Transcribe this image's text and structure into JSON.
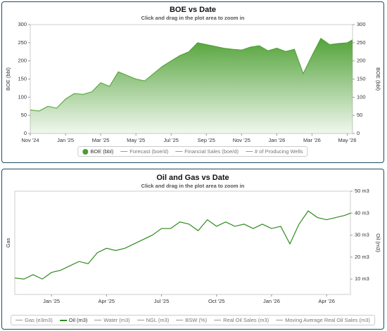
{
  "chart_data": [
    {
      "type": "area",
      "title": "BOE vs Date",
      "subtitle": "Click and drag in the plot area to zoom in",
      "y_label": "BOE (bbl)",
      "y2_label": "BOE (bbl)",
      "x": [
        0,
        0.5,
        1,
        1.5,
        2,
        2.5,
        3,
        3.5,
        4,
        4.5,
        5,
        5.5,
        6,
        6.5,
        7,
        7.5,
        8,
        8.5,
        9,
        9.5,
        10,
        10.5,
        11,
        11.5,
        12,
        12.5,
        13,
        13.5,
        14,
        14.5,
        15,
        15.5,
        16,
        16.5,
        17,
        17.5,
        18,
        18.3
      ],
      "xlim": [
        0,
        18.3
      ],
      "xticks": [
        {
          "value": 0,
          "label": "Nov '24"
        },
        {
          "value": 2,
          "label": "Jan '25"
        },
        {
          "value": 4,
          "label": "Mar '25"
        },
        {
          "value": 6,
          "label": "May '25"
        },
        {
          "value": 8,
          "label": "Jul '25"
        },
        {
          "value": 10,
          "label": "Sep '25"
        },
        {
          "value": 12,
          "label": "Nov '25"
        },
        {
          "value": 14,
          "label": "Jan '26"
        },
        {
          "value": 16,
          "label": "Mar '26"
        },
        {
          "value": 18,
          "label": "May '26"
        }
      ],
      "ylim": [
        0,
        300
      ],
      "yticks": [
        0,
        50,
        100,
        150,
        200,
        250,
        300
      ],
      "y2lim": [
        0,
        300
      ],
      "y2ticks": [
        0,
        50,
        100,
        150,
        200,
        250,
        300
      ],
      "series": [
        {
          "name": "BOE (bbl)",
          "color": "#4a9e2f",
          "values": [
            65,
            62,
            75,
            70,
            95,
            110,
            108,
            115,
            140,
            130,
            170,
            160,
            150,
            145,
            165,
            185,
            200,
            215,
            225,
            250,
            245,
            240,
            235,
            232,
            230,
            238,
            242,
            228,
            235,
            226,
            232,
            165,
            215,
            262,
            245,
            248,
            250,
            258
          ]
        },
        {
          "name": "Forecast (boe/d)",
          "color": "#999999",
          "visible": false
        },
        {
          "name": "Financial Sales (boe/d)",
          "color": "#999999",
          "visible": false
        },
        {
          "name": "# of Producing Wells",
          "color": "#999999",
          "visible": false
        }
      ]
    },
    {
      "type": "line",
      "title": "Oil and Gas vs Date",
      "subtitle": "Click and drag in the plot area to zoom in",
      "y_label": "Gas",
      "y2_label": "Oil (m3)",
      "x": [
        0,
        0.5,
        1,
        1.5,
        2,
        2.5,
        3,
        3.5,
        4,
        4.5,
        5,
        5.5,
        6,
        6.5,
        7,
        7.5,
        8,
        8.5,
        9,
        9.5,
        10,
        10.5,
        11,
        11.5,
        12,
        12.5,
        13,
        13.5,
        14,
        14.5,
        15,
        15.5,
        16,
        16.5,
        17,
        17.5,
        18,
        18.3
      ],
      "xlim": [
        0,
        18.3
      ],
      "xticks": [
        {
          "value": 2,
          "label": "Jan '25"
        },
        {
          "value": 5,
          "label": "Apr '25"
        },
        {
          "value": 8,
          "label": "Jul '25"
        },
        {
          "value": 11,
          "label": "Oct '25"
        },
        {
          "value": 14,
          "label": "Jan '26"
        },
        {
          "value": 17,
          "label": "Apr '26"
        }
      ],
      "y2lim": [
        3,
        50
      ],
      "y2ticks": [
        {
          "value": 10,
          "label": "10 m3"
        },
        {
          "value": 20,
          "label": "20 m3"
        },
        {
          "value": 30,
          "label": "30 m3"
        },
        {
          "value": 40,
          "label": "40 m3"
        },
        {
          "value": 50,
          "label": "50 m3"
        }
      ],
      "series": [
        {
          "name": "Gas (e3m3)",
          "color": "#999999",
          "visible": false
        },
        {
          "name": "Oil (m3)",
          "color": "#2e8b1e",
          "axis": "y2",
          "values": [
            10.5,
            10,
            12,
            10,
            13,
            14,
            16,
            18,
            17,
            22,
            24,
            23,
            24,
            26,
            28,
            30,
            33,
            33,
            36,
            35,
            32,
            37,
            34,
            36,
            34,
            35,
            33,
            35,
            33,
            34,
            26,
            35,
            41,
            38,
            37,
            38,
            39,
            40
          ]
        },
        {
          "name": "Water (m3)",
          "color": "#999999",
          "visible": false
        },
        {
          "name": "NGL (m3)",
          "color": "#999999",
          "visible": false
        },
        {
          "name": "BSW (%)",
          "color": "#999999",
          "visible": false
        },
        {
          "name": "Real Oil Sales (m3)",
          "color": "#999999",
          "visible": false
        },
        {
          "name": "Moving Average Real Oil Sales (m3)",
          "color": "#999999",
          "visible": false
        }
      ]
    }
  ]
}
